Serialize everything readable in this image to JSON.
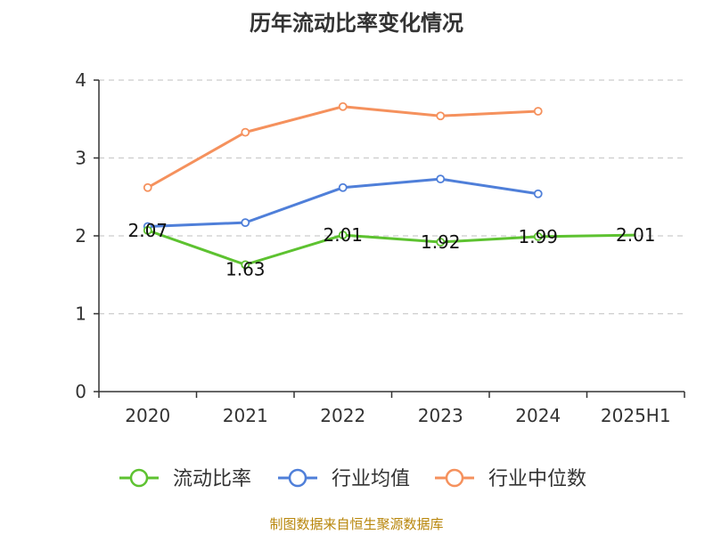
{
  "title": "历年流动比率变化情况",
  "source": "制图数据来自恒生聚源数据库",
  "chart_data": {
    "type": "line",
    "title": "历年流动比率变化情况",
    "categories": [
      "2020",
      "2021",
      "2022",
      "2023",
      "2024",
      "2025H1"
    ],
    "ylim": [
      0,
      4
    ],
    "yticks": [
      "0",
      "1",
      "2",
      "3",
      "4"
    ],
    "grid": true,
    "legend": "bottom",
    "series": [
      {
        "name": "流动比率",
        "color": "#5dc230",
        "values": [
          2.07,
          1.63,
          2.01,
          1.92,
          1.99,
          2.01
        ],
        "labels": [
          "2.07",
          "1.63",
          "2.01",
          "1.92",
          "1.99",
          "2.01"
        ]
      },
      {
        "name": "行业均值",
        "color": "#4f7fd9",
        "values": [
          2.12,
          2.17,
          2.62,
          2.73,
          2.54,
          null
        ]
      },
      {
        "name": "行业中位数",
        "color": "#f5915d",
        "values": [
          2.62,
          3.33,
          3.66,
          3.54,
          3.6,
          null
        ]
      }
    ]
  }
}
